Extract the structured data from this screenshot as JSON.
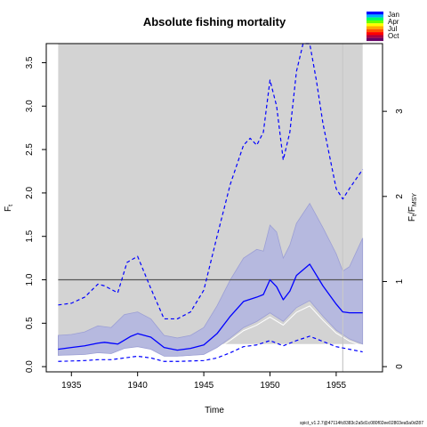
{
  "chart_data": {
    "type": "line",
    "title": "Absolute fishing mortality",
    "xlabel": "Time",
    "ylabel_main": "F",
    "ylabel_sub": "t",
    "y2label_main": "F",
    "y2label_sub1": "t",
    "y2label_mid": "/F",
    "y2label_sub2": "MSY",
    "xlim": [
      1933.1,
      1958.5
    ],
    "ylim": [
      -0.06,
      3.72
    ],
    "x_ticks": [
      "1935",
      "1940",
      "1945",
      "1950",
      "1955"
    ],
    "y_ticks": [
      "0.0",
      "0.5",
      "1.0",
      "1.5",
      "2.0",
      "2.5",
      "3.0",
      "3.5"
    ],
    "y2_ticks": [
      "0",
      "1",
      "2",
      "3"
    ],
    "y2_scale": 0.98,
    "fmsy_reference": 1.0,
    "grey_region_x": [
      1934,
      1957
    ],
    "grey_region_ymin": 0.26,
    "vertical_line_x": 1955.5,
    "colors": {
      "background": "#d3d3d3",
      "ci_fill": "#b6b9df",
      "ci_edge": "#9c9fd4",
      "line": "#0000ff",
      "msy_line": "#555555",
      "white_ci": "#ffffff"
    },
    "series": [
      {
        "name": "F_t",
        "x": [
          1934,
          1935,
          1936,
          1937,
          1937.5,
          1938.5,
          1939.5,
          1940,
          1941,
          1942,
          1943,
          1944,
          1945,
          1946,
          1947,
          1948,
          1949,
          1949.5,
          1950,
          1950.5,
          1951,
          1951.5,
          1952,
          1953,
          1954,
          1955,
          1955.5,
          1956,
          1957
        ],
        "y": [
          0.2,
          0.22,
          0.24,
          0.27,
          0.28,
          0.26,
          0.35,
          0.38,
          0.34,
          0.22,
          0.19,
          0.21,
          0.25,
          0.38,
          0.58,
          0.75,
          0.8,
          0.83,
          1.0,
          0.92,
          0.77,
          0.87,
          1.05,
          1.18,
          0.93,
          0.72,
          0.63,
          0.62,
          0.62
        ]
      },
      {
        "name": "upper_dashed",
        "x": [
          1934,
          1935,
          1936,
          1937,
          1937.5,
          1938.5,
          1939.2,
          1940,
          1941,
          1942,
          1943,
          1944,
          1945,
          1946,
          1947,
          1948,
          1948.5,
          1949,
          1949.5,
          1950,
          1950.5,
          1951,
          1951.5,
          1952,
          1952.5,
          1953,
          1953.5,
          1954,
          1955,
          1955.5,
          1956,
          1957
        ],
        "y": [
          0.71,
          0.73,
          0.8,
          0.95,
          0.93,
          0.85,
          1.2,
          1.27,
          0.9,
          0.55,
          0.55,
          0.63,
          0.88,
          1.5,
          2.1,
          2.55,
          2.63,
          2.55,
          2.7,
          3.3,
          3.0,
          2.38,
          2.7,
          3.4,
          3.72,
          3.72,
          3.3,
          2.8,
          2.05,
          1.93,
          2.05,
          2.27
        ]
      },
      {
        "name": "lower_dashed",
        "x": [
          1934,
          1936,
          1937,
          1938,
          1939,
          1940,
          1941,
          1942,
          1943,
          1945,
          1946,
          1947,
          1948,
          1949,
          1950,
          1951,
          1952,
          1953,
          1954,
          1955,
          1956,
          1957
        ],
        "y": [
          0.06,
          0.07,
          0.08,
          0.08,
          0.1,
          0.12,
          0.1,
          0.06,
          0.06,
          0.07,
          0.1,
          0.16,
          0.23,
          0.25,
          0.3,
          0.24,
          0.3,
          0.35,
          0.29,
          0.23,
          0.2,
          0.17
        ]
      },
      {
        "name": "ci_upper",
        "x": [
          1934,
          1935,
          1936,
          1937,
          1938,
          1939,
          1940,
          1941,
          1942,
          1943,
          1944,
          1945,
          1946,
          1947,
          1948,
          1949,
          1949.5,
          1950,
          1950.5,
          1951,
          1951.5,
          1952,
          1953,
          1954,
          1955,
          1955.5,
          1956,
          1957
        ],
        "y": [
          0.36,
          0.37,
          0.4,
          0.47,
          0.45,
          0.6,
          0.63,
          0.55,
          0.36,
          0.33,
          0.36,
          0.45,
          0.7,
          1.0,
          1.25,
          1.35,
          1.33,
          1.63,
          1.55,
          1.25,
          1.4,
          1.65,
          1.88,
          1.6,
          1.3,
          1.1,
          1.15,
          1.48
        ]
      },
      {
        "name": "ci_lower",
        "x": [
          1934,
          1936,
          1937,
          1938,
          1939,
          1940,
          1941,
          1942,
          1943,
          1945,
          1946,
          1947,
          1948,
          1949,
          1950,
          1951,
          1952,
          1953,
          1954,
          1955,
          1956,
          1957
        ],
        "y": [
          0.13,
          0.14,
          0.16,
          0.15,
          0.21,
          0.23,
          0.2,
          0.12,
          0.12,
          0.14,
          0.22,
          0.33,
          0.45,
          0.52,
          0.62,
          0.52,
          0.68,
          0.76,
          0.58,
          0.42,
          0.32,
          0.26
        ]
      }
    ]
  },
  "legend": {
    "items": [
      "Jan",
      "Apr",
      "Jul",
      "Oct"
    ],
    "colors": [
      "#0000ff",
      "#00aaff",
      "#00ff66",
      "#66ff00",
      "#ffff00",
      "#ffaa00",
      "#ff5500",
      "#ff0000",
      "#aa0044",
      "#660066"
    ]
  },
  "footer": {
    "version_text": "spict_v1.2.7@47114fc8383c2a5d1c080f02ee02803ea5a0d287"
  }
}
